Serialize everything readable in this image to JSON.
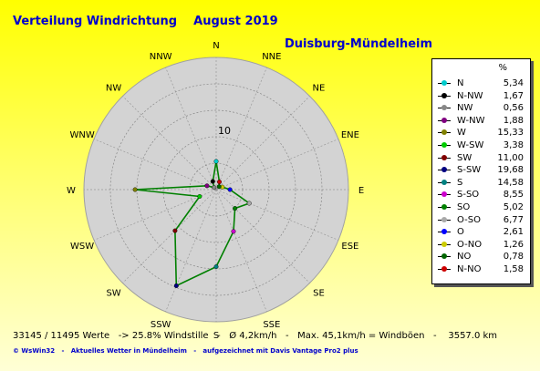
{
  "header": {
    "title": "Verteilung Windrichtung    August 2019",
    "station": "Duisburg-Mündelheim"
  },
  "chart_data": {
    "type": "radar",
    "legend_unit": "%",
    "ring_label": "10",
    "rmax": 25,
    "rings": [
      5,
      10,
      15,
      20
    ],
    "directions": [
      "N",
      "N-NW",
      "NW",
      "W-NW",
      "W",
      "W-SW",
      "SW",
      "S-SW",
      "S",
      "S-SO",
      "SO",
      "O-SO",
      "O",
      "O-NO",
      "NO",
      "N-NO"
    ],
    "axis_labels": [
      "N",
      "NNW",
      "NW",
      "WNW",
      "W",
      "WSW",
      "SW",
      "SSW",
      "S",
      "SSE",
      "SE",
      "ESE",
      "E",
      "ENE",
      "NE",
      "NNE"
    ],
    "angles_deg": [
      0,
      337.5,
      315,
      292.5,
      270,
      247.5,
      225,
      202.5,
      180,
      157.5,
      135,
      112.5,
      90,
      67.5,
      45,
      22.5
    ],
    "values": [
      5.34,
      1.67,
      0.56,
      1.88,
      15.33,
      3.38,
      11.0,
      19.68,
      14.58,
      8.55,
      5.02,
      6.77,
      2.61,
      1.26,
      0.78,
      1.58
    ],
    "value_labels": [
      "5,34",
      "1,67",
      "0,56",
      "1,88",
      "15,33",
      "3,38",
      "11,00",
      "19,68",
      "14,58",
      "8,55",
      "5,02",
      "6,77",
      "2,61",
      "1,26",
      "0,78",
      "1,58"
    ],
    "marker_colors": [
      "#00cccc",
      "#000000",
      "#888888",
      "#800080",
      "#808000",
      "#00cc00",
      "#800000",
      "#000080",
      "#008080",
      "#cc00cc",
      "#008000",
      "#aaaaaa",
      "#0000ff",
      "#cccc00",
      "#006400",
      "#cc0000"
    ],
    "line_color": "#008000"
  },
  "stats": "33145 / 11495 Werte   -> 25.8% Windstille   -   Ø 4,2km/h   -   Max. 45,1km/h = Windböen   -    3557.0 km",
  "footer": "© WsWin32   -   Aktuelles Wetter in Mündelheim   -   aufgezeichnet mit Davis Vantage Pro2 plus"
}
